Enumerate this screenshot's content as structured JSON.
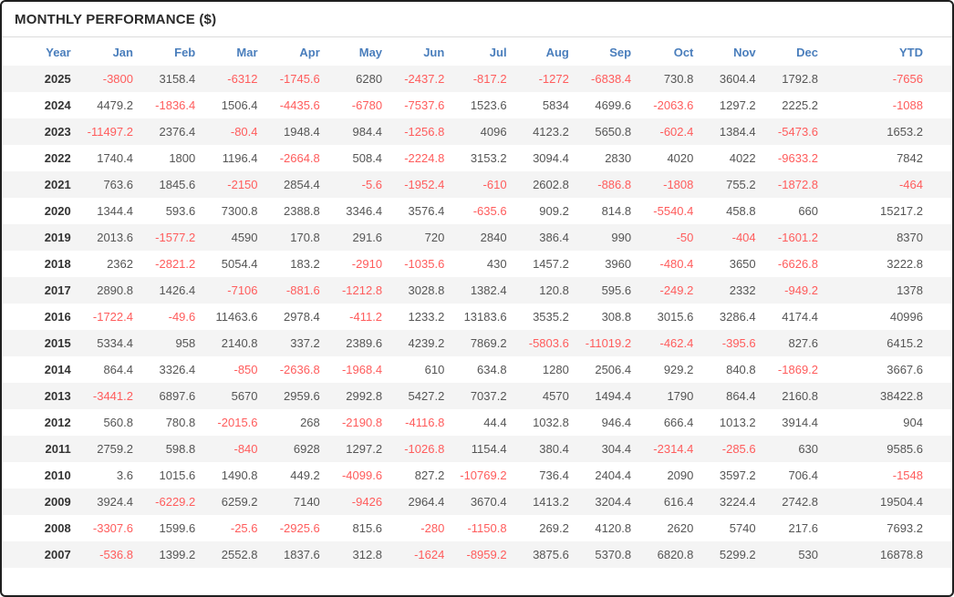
{
  "colors": {
    "header_text": "#4a7ebc",
    "negative": "#ff5c5c",
    "value_text": "#555555",
    "year_text": "#333333",
    "title_text": "#2b2b2b",
    "row_alt_bg": "#f4f4f4",
    "divider": "#dcdcdc",
    "frame_border": "#1f1f1f",
    "background": "#ffffff"
  },
  "chart_data": {
    "type": "table",
    "title": "MONTHLY PERFORMANCE ($)",
    "columns": [
      "Year",
      "Jan",
      "Feb",
      "Mar",
      "Apr",
      "May",
      "Jun",
      "Jul",
      "Aug",
      "Sep",
      "Oct",
      "Nov",
      "Dec",
      "YTD"
    ],
    "rows": [
      {
        "year": "2025",
        "values": [
          -3800,
          3158.4,
          -6312,
          -1745.6,
          6280,
          -2437.2,
          -817.2,
          -1272,
          -6838.4,
          730.8,
          3604.4,
          1792.8,
          -7656
        ]
      },
      {
        "year": "2024",
        "values": [
          4479.2,
          -1836.4,
          1506.4,
          -4435.6,
          -6780,
          -7537.6,
          1523.6,
          5834,
          4699.6,
          -2063.6,
          1297.2,
          2225.2,
          -1088
        ]
      },
      {
        "year": "2023",
        "values": [
          -11497.2,
          2376.4,
          -80.4,
          1948.4,
          984.4,
          -1256.8,
          4096,
          4123.2,
          5650.8,
          -602.4,
          1384.4,
          -5473.6,
          1653.2
        ]
      },
      {
        "year": "2022",
        "values": [
          1740.4,
          1800,
          1196.4,
          -2664.8,
          508.4,
          -2224.8,
          3153.2,
          3094.4,
          2830,
          4020,
          4022,
          -9633.2,
          7842
        ]
      },
      {
        "year": "2021",
        "values": [
          763.6,
          1845.6,
          -2150,
          2854.4,
          -5.6,
          -1952.4,
          -610,
          2602.8,
          -886.8,
          -1808,
          755.2,
          -1872.8,
          -464
        ]
      },
      {
        "year": "2020",
        "values": [
          1344.4,
          593.6,
          7300.8,
          2388.8,
          3346.4,
          3576.4,
          -635.6,
          909.2,
          814.8,
          -5540.4,
          458.8,
          660,
          15217.2
        ]
      },
      {
        "year": "2019",
        "values": [
          2013.6,
          -1577.2,
          4590,
          170.8,
          291.6,
          720,
          2840,
          386.4,
          990,
          -50,
          -404,
          -1601.2,
          8370
        ]
      },
      {
        "year": "2018",
        "values": [
          2362,
          -2821.2,
          5054.4,
          183.2,
          -2910,
          -1035.6,
          430,
          1457.2,
          3960,
          -480.4,
          3650,
          -6626.8,
          3222.8
        ]
      },
      {
        "year": "2017",
        "values": [
          2890.8,
          1426.4,
          -7106,
          -881.6,
          -1212.8,
          3028.8,
          1382.4,
          120.8,
          595.6,
          -249.2,
          2332,
          -949.2,
          1378
        ]
      },
      {
        "year": "2016",
        "values": [
          -1722.4,
          -49.6,
          11463.6,
          2978.4,
          -411.2,
          1233.2,
          13183.6,
          3535.2,
          308.8,
          3015.6,
          3286.4,
          4174.4,
          40996
        ]
      },
      {
        "year": "2015",
        "values": [
          5334.4,
          958,
          2140.8,
          337.2,
          2389.6,
          4239.2,
          7869.2,
          -5803.6,
          -11019.2,
          -462.4,
          -395.6,
          827.6,
          6415.2
        ]
      },
      {
        "year": "2014",
        "values": [
          864.4,
          3326.4,
          -850,
          -2636.8,
          -1968.4,
          610,
          634.8,
          1280,
          2506.4,
          929.2,
          840.8,
          -1869.2,
          3667.6
        ]
      },
      {
        "year": "2013",
        "values": [
          -3441.2,
          6897.6,
          5670,
          2959.6,
          2992.8,
          5427.2,
          7037.2,
          4570,
          1494.4,
          1790,
          864.4,
          2160.8,
          38422.8
        ]
      },
      {
        "year": "2012",
        "values": [
          560.8,
          780.8,
          -2015.6,
          268,
          -2190.8,
          -4116.8,
          44.4,
          1032.8,
          946.4,
          666.4,
          1013.2,
          3914.4,
          904
        ]
      },
      {
        "year": "2011",
        "values": [
          2759.2,
          598.8,
          -840,
          6928,
          1297.2,
          -1026.8,
          1154.4,
          380.4,
          304.4,
          -2314.4,
          -285.6,
          630,
          9585.6
        ]
      },
      {
        "year": "2010",
        "values": [
          3.6,
          1015.6,
          1490.8,
          449.2,
          -4099.6,
          827.2,
          -10769.2,
          736.4,
          2404.4,
          2090,
          3597.2,
          706.4,
          -1548
        ]
      },
      {
        "year": "2009",
        "values": [
          3924.4,
          -6229.2,
          6259.2,
          7140,
          -9426,
          2964.4,
          3670.4,
          1413.2,
          3204.4,
          616.4,
          3224.4,
          2742.8,
          19504.4
        ]
      },
      {
        "year": "2008",
        "values": [
          -3307.6,
          1599.6,
          -25.6,
          -2925.6,
          815.6,
          -280,
          -1150.8,
          269.2,
          4120.8,
          2620,
          5740,
          217.6,
          7693.2
        ]
      },
      {
        "year": "2007",
        "values": [
          -536.8,
          1399.2,
          2552.8,
          1837.6,
          312.8,
          -1624,
          -8959.2,
          3875.6,
          5370.8,
          6820.8,
          5299.2,
          530,
          16878.8
        ]
      }
    ]
  }
}
